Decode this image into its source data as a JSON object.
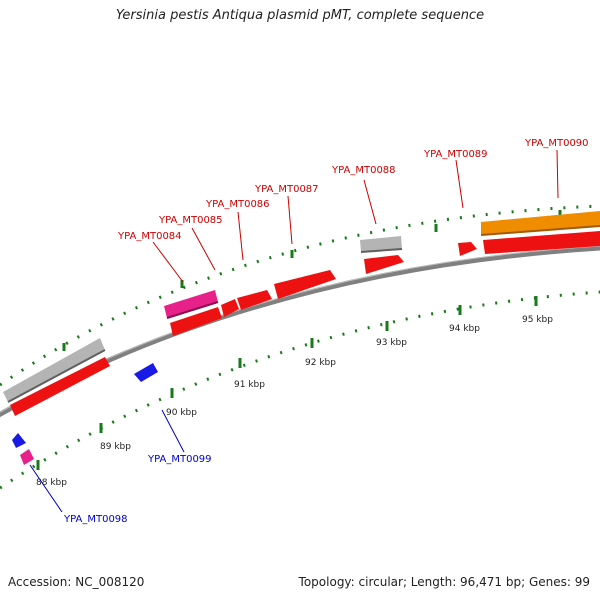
{
  "title": "Yersinia pestis Antiqua plasmid pMT, complete sequence",
  "footer": {
    "accession": "Accession: NC_008120",
    "summary": "Topology: circular; Length: 96,471 bp; Genes: 99"
  },
  "colors": {
    "backbone": "#808080",
    "tick": "#1a7a1a",
    "forward_label": "#cc0000",
    "reverse_label": "#0000cc",
    "cds": "#ee1111",
    "pink": "#e8208a",
    "gray": "#b4b4b4",
    "orange": "#f08c00",
    "blue": "#1a1ae6"
  },
  "kbp_ticks": [
    "88 kbp",
    "89 kbp",
    "90 kbp",
    "91 kbp",
    "92 kbp",
    "93 kbp",
    "94 kbp",
    "95 kbp"
  ],
  "forward_labels": [
    "YPA_MT0084",
    "YPA_MT0085",
    "YPA_MT0086",
    "YPA_MT0087",
    "YPA_MT0088",
    "YPA_MT0089",
    "YPA_MT0090"
  ],
  "reverse_labels": [
    "YPA_MT0098",
    "YPA_MT0099"
  ]
}
